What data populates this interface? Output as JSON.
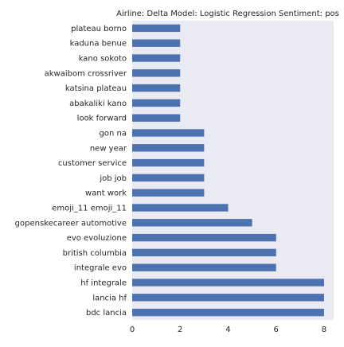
{
  "chart_data": {
    "type": "bar",
    "orientation": "horizontal",
    "title": "Airline: Delta Model: Logistic Regression Sentiment: pos",
    "xlabel": "",
    "ylabel": "",
    "categories": [
      "bdc lancia",
      "lancia hf",
      "hf integrale",
      "integrale evo",
      "british columbia",
      "evo evoluzione",
      "gopenskecareer automotive",
      "emoji_11 emoji_11",
      "want work",
      "job job",
      "customer service",
      "new year",
      "gon na",
      "look forward",
      "abakaliki kano",
      "katsina plateau",
      "akwaibom crossriver",
      "kano sokoto",
      "kaduna benue",
      "plateau borno"
    ],
    "values": [
      8,
      8,
      8,
      6,
      6,
      6,
      5,
      4,
      3,
      3,
      3,
      3,
      3,
      2,
      2,
      2,
      2,
      2,
      2,
      2
    ],
    "xlim": [
      0,
      8.4
    ],
    "xticks": [
      0,
      2,
      4,
      6,
      8
    ],
    "grid": false,
    "colors": {
      "bar": "#4c72b0",
      "plot_background": "#eaeaf2"
    }
  }
}
